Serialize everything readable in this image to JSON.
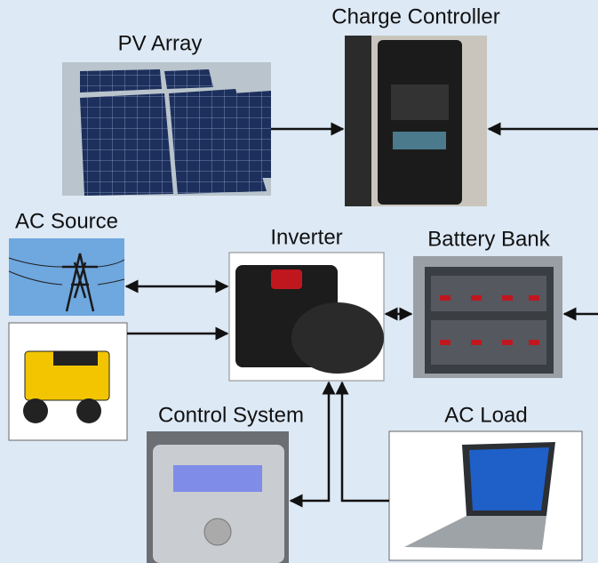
{
  "nodes": [
    {
      "label": "PV Array"
    },
    {
      "label": "Charge Controller"
    },
    {
      "label": "AC Source"
    },
    {
      "label": "Inverter"
    },
    {
      "label": "Battery Bank"
    },
    {
      "label": "Control System"
    },
    {
      "label": "AC Load"
    }
  ]
}
